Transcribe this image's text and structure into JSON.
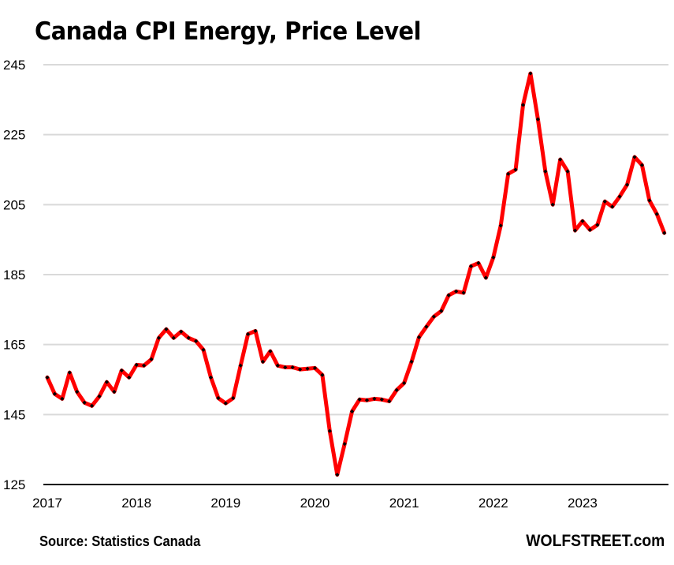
{
  "chart_data": {
    "type": "line",
    "title": "Canada CPI Energy, Price Level",
    "xlabel": "",
    "ylabel": "",
    "ylim": [
      125,
      245
    ],
    "yticks": [
      125,
      145,
      165,
      185,
      205,
      225,
      245
    ],
    "xticks": [
      "2017",
      "2018",
      "2019",
      "2020",
      "2021",
      "2022",
      "2023"
    ],
    "x_start": "2017-01",
    "x_frequency": "monthly",
    "grid": true,
    "legend": "none",
    "series": [
      {
        "name": "CPI Energy",
        "color": "#ff0000",
        "marker_color": "#000000",
        "values": [
          155.6,
          150.9,
          149.5,
          157.0,
          151.5,
          148.4,
          147.5,
          150.2,
          154.3,
          151.5,
          157.6,
          155.6,
          159.2,
          159.0,
          160.8,
          166.9,
          169.4,
          166.9,
          168.7,
          166.9,
          166.0,
          163.5,
          155.6,
          149.7,
          148.2,
          149.7,
          159.0,
          168.0,
          168.9,
          160.1,
          163.1,
          159.0,
          158.5,
          158.5,
          157.9,
          158.1,
          158.3,
          156.3,
          140.3,
          127.8,
          136.6,
          145.9,
          149.3,
          149.1,
          149.5,
          149.3,
          148.8,
          152.0,
          154.0,
          160.1,
          167.1,
          170.1,
          173.0,
          174.6,
          179.1,
          180.2,
          179.8,
          187.4,
          188.3,
          184.1,
          189.9,
          199.0,
          213.8,
          215.0,
          233.5,
          242.5,
          229.4,
          214.5,
          205.0,
          217.9,
          214.5,
          197.6,
          200.3,
          197.8,
          199.2,
          205.9,
          204.4,
          207.3,
          210.7,
          218.6,
          216.3,
          206.2,
          202.3,
          196.9
        ]
      }
    ]
  },
  "footer": {
    "source": "Source: Statistics Canada",
    "brand": "WOLFSTREET.com"
  }
}
